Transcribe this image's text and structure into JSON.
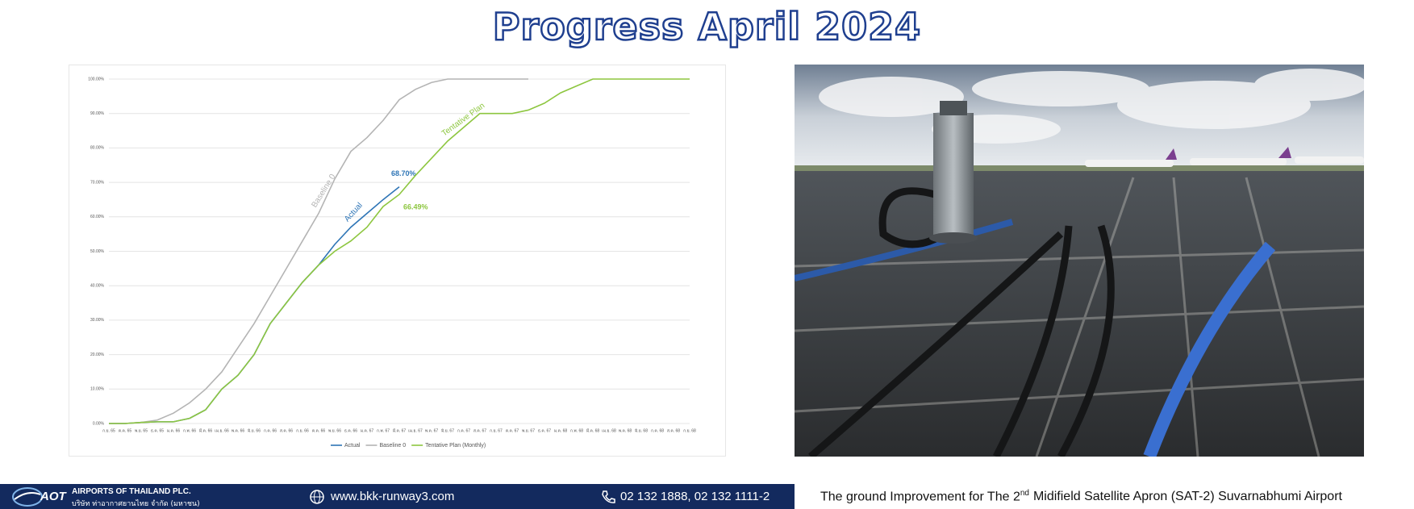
{
  "title": "Progress April 2024",
  "chart_data": {
    "type": "line",
    "categories": [
      "ก.ย. 65",
      "ต.ค. 65",
      "พ.ย. 65",
      "ธ.ค. 65",
      "ม.ค. 66",
      "ก.พ. 66",
      "มี.ค. 66",
      "เม.ย. 66",
      "พ.ค. 66",
      "มิ.ย. 66",
      "ก.ค. 66",
      "ส.ค. 66",
      "ก.ย. 66",
      "ต.ค. 66",
      "พ.ย. 66",
      "ธ.ค. 66",
      "ม.ค. 67",
      "ก.พ. 67",
      "มี.ค. 67",
      "เม.ย. 67",
      "พ.ค. 67",
      "มิ.ย. 67",
      "ก.ค. 67",
      "ส.ค. 67",
      "ก.ย. 67",
      "ต.ค. 67",
      "พ.ย. 67",
      "ธ.ค. 67",
      "ม.ค. 68",
      "ก.พ. 68",
      "มี.ค. 68",
      "เม.ย. 68",
      "พ.ค. 68",
      "มิ.ย. 68",
      "ก.ค. 68",
      "ส.ค. 68",
      "ก.ย. 68"
    ],
    "series": [
      {
        "name": "Actual",
        "color": "#2e75b6",
        "values": [
          0,
          0,
          0.3,
          0.5,
          0.5,
          1.5,
          4,
          10,
          14,
          20,
          29,
          35,
          41,
          46,
          52,
          57,
          61,
          65,
          68.7,
          null,
          null,
          null,
          null,
          null,
          null,
          null,
          null,
          null,
          null,
          null,
          null,
          null,
          null,
          null,
          null,
          null,
          null
        ],
        "value_labels": [
          null,
          null,
          null,
          null,
          null,
          null,
          null,
          null,
          null,
          null,
          null,
          null,
          null,
          null,
          null,
          null,
          null,
          null,
          "68.70%",
          null,
          null,
          null,
          null,
          null,
          null,
          null,
          null,
          null,
          null,
          null,
          null,
          null,
          null,
          null,
          null,
          null,
          null
        ]
      },
      {
        "name": "Baseline 0",
        "color": "#b4b4b4",
        "values": [
          0,
          0,
          0.3,
          1,
          3,
          6,
          10,
          15,
          22,
          29,
          37,
          45,
          53,
          61,
          71,
          79,
          83,
          88,
          94,
          97,
          99,
          100,
          100,
          100,
          100,
          100,
          100,
          null,
          null,
          null,
          null,
          null,
          null,
          null,
          null,
          null,
          null
        ]
      },
      {
        "name": "Tentative Plan (Monthly)",
        "color": "#8dc63f",
        "values": [
          0,
          0,
          0.3,
          0.5,
          0.5,
          1.5,
          4,
          10,
          14,
          20,
          29,
          35,
          41,
          46,
          50,
          53,
          57,
          63,
          66.49,
          72,
          77,
          82,
          86,
          90,
          90,
          90,
          91,
          93,
          96,
          98,
          100,
          100,
          100,
          100,
          100,
          100,
          100
        ],
        "value_labels": [
          null,
          null,
          null,
          null,
          null,
          null,
          null,
          null,
          null,
          null,
          null,
          null,
          null,
          null,
          null,
          null,
          null,
          null,
          "66.49%",
          null,
          null,
          null,
          null,
          null,
          null,
          null,
          null,
          null,
          null,
          null,
          null,
          null,
          null,
          null,
          null,
          null,
          null
        ]
      }
    ],
    "annotations": [
      "Baseline 0",
      "Actual",
      "Tentative Plan"
    ],
    "ylim": [
      0,
      100
    ],
    "yticks": [
      {
        "value": 0,
        "label": "0.00%"
      },
      {
        "value": 10,
        "label": "10.00%"
      },
      {
        "value": 20,
        "label": "20.00%"
      },
      {
        "value": 30,
        "label": "30.00%"
      },
      {
        "value": 40,
        "label": "40.00%"
      },
      {
        "value": 50,
        "label": "50.00%"
      },
      {
        "value": 60,
        "label": "60.00%"
      },
      {
        "value": 70,
        "label": "70.00%"
      },
      {
        "value": 80,
        "label": "80.00%"
      },
      {
        "value": 90,
        "label": "90.00%"
      },
      {
        "value": 100,
        "label": "100.00%"
      }
    ],
    "grid": true,
    "legend": "bottom"
  },
  "footer": {
    "logo": "AOT",
    "company": "AIRPORTS OF THAILAND PLC.",
    "company_thai": "บริษัท ท่าอากาศยานไทย จำกัด (มหาชน)",
    "website": "www.bkk-runway3.com",
    "phone": "02 132 1888, 02 132 1111-2"
  },
  "caption": {
    "before": "The ground Improvement for The 2",
    "sup": "nd",
    "after": "Midifield Satellite Apron (SAT-2) Suvarnabhumi Airport"
  }
}
